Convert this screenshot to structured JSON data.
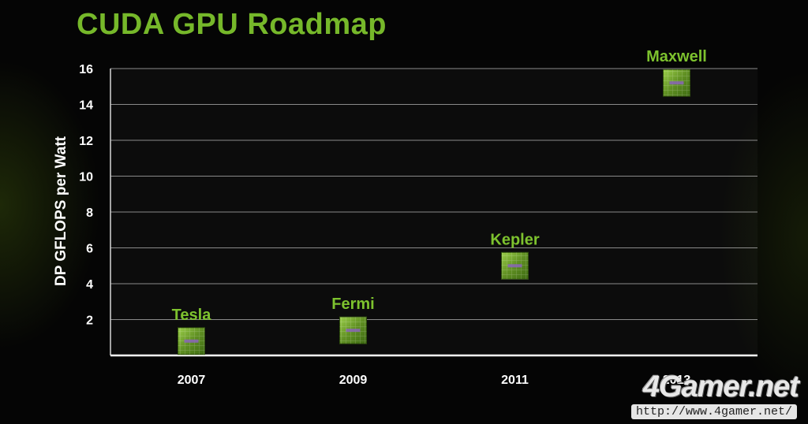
{
  "chart_data": {
    "type": "scatter",
    "title": "CUDA GPU Roadmap",
    "xlabel": "",
    "ylabel": "DP GFLOPS per Watt",
    "categories": [
      "2007",
      "2009",
      "2011",
      "2013"
    ],
    "points": [
      {
        "label": "Tesla",
        "x": "2007",
        "y": 0.8
      },
      {
        "label": "Fermi",
        "x": "2009",
        "y": 1.4
      },
      {
        "label": "Kepler",
        "x": "2011",
        "y": 5
      },
      {
        "label": "Maxwell",
        "x": "2013",
        "y": 15.2
      }
    ],
    "yticks": [
      2,
      4,
      6,
      8,
      10,
      12,
      14,
      16
    ],
    "ylim": [
      0,
      16
    ],
    "grid": true,
    "legend": "none"
  },
  "colors": {
    "accent": "#76b82a",
    "label": "#7dc22e",
    "background": "#050505",
    "gridline": "#b5b5b5",
    "text": "#ffffff"
  },
  "watermark": {
    "logo": "4Gamer.net",
    "url": "http://www.4gamer.net/"
  },
  "icons": {
    "marker": "gpu-chip-icon"
  }
}
